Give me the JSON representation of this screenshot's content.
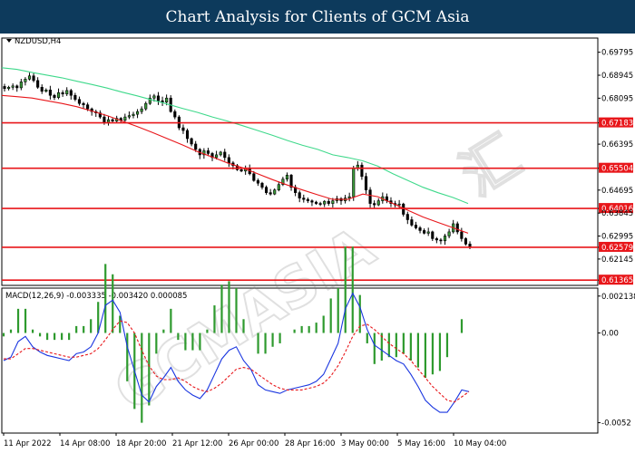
{
  "page_title": "Chart Analysis for Clients of GCM Asia",
  "symbol_label": "NZDUSD,H4",
  "watermark": {
    "brand": "GCMASIA",
    "cjk": "汇"
  },
  "colors": {
    "header_bg": "#0d3a5c",
    "level_line": "#e8161a",
    "sma_fast": "#e8161a",
    "sma_slow": "#3fd98b",
    "candle": "#000000",
    "candle_up_body": "#3a9b3a",
    "macd_line": "#1a36e0",
    "signal_line": "#e8161a",
    "histogram": "#2e9a2e",
    "current_price": "#e8161a"
  },
  "chart_data": {
    "type": "candlestick",
    "symbol": "NZDUSD",
    "timeframe": "H4",
    "price_axis": {
      "ticks": [
        "0.69795",
        "0.68945",
        "0.68095",
        "0.67183",
        "0.66395",
        "0.65504",
        "0.64695",
        "0.64016",
        "0.63845",
        "0.62995",
        "0.62579",
        "0.62145",
        "0.61365"
      ],
      "ylim": [
        0.6117,
        0.7032
      ]
    },
    "time_axis": {
      "ticks": [
        "11 Apr 2022",
        "14 Apr 08:00",
        "18 Apr 20:00",
        "21 Apr 12:00",
        "26 Apr 00:00",
        "28 Apr 16:00",
        "3 May 00:00",
        "5 May 16:00",
        "10 May 04:00"
      ]
    },
    "horizontal_levels": [
      0.67183,
      0.65504,
      0.64016,
      0.62579,
      0.61365
    ],
    "current_price": "0.62579",
    "close_series": [
      0.6845,
      0.685,
      0.6855,
      0.6848,
      0.687,
      0.688,
      0.6892,
      0.6875,
      0.685,
      0.6835,
      0.684,
      0.682,
      0.6812,
      0.683,
      0.6825,
      0.6838,
      0.682,
      0.6805,
      0.679,
      0.6785,
      0.677,
      0.676,
      0.6755,
      0.674,
      0.672,
      0.673,
      0.6725,
      0.6735,
      0.6728,
      0.674,
      0.6745,
      0.675,
      0.676,
      0.677,
      0.679,
      0.681,
      0.6818,
      0.68,
      0.6795,
      0.681,
      0.676,
      0.674,
      0.67,
      0.669,
      0.666,
      0.664,
      0.662,
      0.66,
      0.6615,
      0.6605,
      0.659,
      0.66,
      0.661,
      0.659,
      0.657,
      0.656,
      0.6545,
      0.654,
      0.655,
      0.653,
      0.6505,
      0.6495,
      0.648,
      0.646,
      0.6455,
      0.647,
      0.649,
      0.651,
      0.6525,
      0.648,
      0.646,
      0.644,
      0.6435,
      0.643,
      0.6425,
      0.642,
      0.6418,
      0.6428,
      0.642,
      0.643,
      0.6438,
      0.643,
      0.644,
      0.6445,
      0.655,
      0.6562,
      0.652,
      0.647,
      0.642,
      0.6415,
      0.643,
      0.6445,
      0.643,
      0.642,
      0.6415,
      0.6418,
      0.638,
      0.636,
      0.634,
      0.633,
      0.632,
      0.631,
      0.6315,
      0.629,
      0.6285,
      0.6282,
      0.63,
      0.6315,
      0.6345,
      0.6315,
      0.629,
      0.627,
      0.6258
    ],
    "sma_fast": [
      0.682,
      0.6815,
      0.681,
      0.68,
      0.679,
      0.6778,
      0.6762,
      0.6745,
      0.6725,
      0.6705,
      0.6683,
      0.666,
      0.6637,
      0.6612,
      0.6592,
      0.657,
      0.6552,
      0.653,
      0.6508,
      0.6488,
      0.647,
      0.6452,
      0.6435,
      0.6435,
      0.6455,
      0.6445,
      0.642,
      0.6395,
      0.637,
      0.635,
      0.633,
      0.631
    ],
    "sma_slow": [
      0.6922,
      0.6916,
      0.6905,
      0.6895,
      0.6885,
      0.6872,
      0.686,
      0.6847,
      0.6832,
      0.6818,
      0.6803,
      0.6788,
      0.6772,
      0.6757,
      0.674,
      0.6725,
      0.6708,
      0.669,
      0.6672,
      0.6653,
      0.6635,
      0.662,
      0.66,
      0.659,
      0.6578,
      0.6558,
      0.653,
      0.6505,
      0.648,
      0.646,
      0.6442,
      0.642
    ]
  },
  "macd": {
    "label": "MACD(12,26,9) -0.003335 -0.003420 0.000085",
    "ticks": [
      "0.002138",
      "0.00",
      "-0.0052"
    ],
    "ylim": [
      -0.0058,
      0.0026
    ],
    "macd_series": [
      -0.0016,
      -0.0014,
      -0.0005,
      -0.0002,
      -0.0008,
      -0.0011,
      -0.0013,
      -0.0014,
      -0.0015,
      -0.0016,
      -0.0012,
      -0.0011,
      -0.0008,
      0.0,
      0.0016,
      0.0019,
      0.0012,
      -0.0008,
      -0.0022,
      -0.0036,
      -0.004,
      -0.0031,
      -0.0026,
      -0.002,
      -0.0028,
      -0.0033,
      -0.0036,
      -0.0038,
      -0.0033,
      -0.0024,
      -0.0015,
      -0.001,
      -0.0008,
      -0.0016,
      -0.0021,
      -0.003,
      -0.0033,
      -0.0034,
      -0.0035,
      -0.0033,
      -0.0032,
      -0.0031,
      -0.003,
      -0.0028,
      -0.0024,
      -0.0015,
      -0.0006,
      0.0014,
      0.0023,
      0.0015,
      0.0002,
      -0.0007,
      -0.001,
      -0.0013,
      -0.0016,
      -0.0018,
      -0.0024,
      -0.0031,
      -0.0039,
      -0.0043,
      -0.0046,
      -0.0046,
      -0.004,
      -0.0033,
      -0.0034
    ],
    "signal_series": [
      -0.0015,
      -0.0015,
      -0.0012,
      -0.0009,
      -0.0009,
      -0.001,
      -0.0011,
      -0.0012,
      -0.0013,
      -0.0014,
      -0.0014,
      -0.0013,
      -0.0012,
      -0.0009,
      -0.0004,
      0.0002,
      0.0007,
      0.0006,
      0.0,
      -0.001,
      -0.0019,
      -0.0025,
      -0.0027,
      -0.0027,
      -0.0026,
      -0.0028,
      -0.0031,
      -0.0033,
      -0.0034,
      -0.0032,
      -0.0029,
      -0.0025,
      -0.0021,
      -0.002,
      -0.0021,
      -0.0024,
      -0.0027,
      -0.003,
      -0.0032,
      -0.0033,
      -0.0033,
      -0.0033,
      -0.0032,
      -0.0031,
      -0.0029,
      -0.0025,
      -0.0019,
      -0.0011,
      -0.0002,
      0.0004,
      0.0005,
      0.0002,
      -0.0002,
      -0.0006,
      -0.0009,
      -0.0012,
      -0.0016,
      -0.0021,
      -0.0026,
      -0.0031,
      -0.0035,
      -0.0039,
      -0.004,
      -0.0037,
      -0.0034
    ]
  }
}
